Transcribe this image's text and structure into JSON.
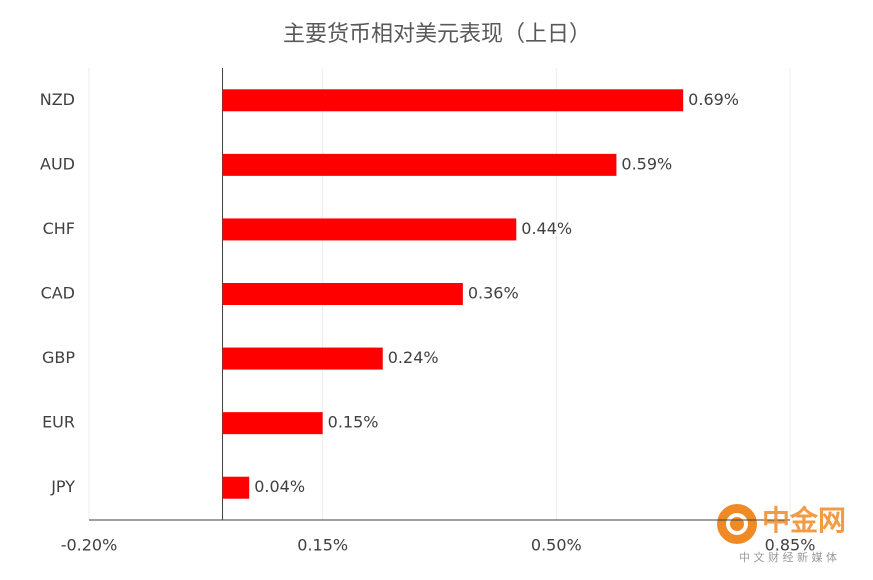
{
  "chart_data": {
    "type": "hbar",
    "title": "主要货币相对美元表现（上日）",
    "categories": [
      "NZD",
      "AUD",
      "CHF",
      "CAD",
      "GBP",
      "EUR",
      "JPY"
    ],
    "values": [
      0.69,
      0.59,
      0.44,
      0.36,
      0.24,
      0.15,
      0.04
    ],
    "value_labels": [
      "0.69%",
      "0.59%",
      "0.44%",
      "0.36%",
      "0.24%",
      "0.15%",
      "0.04%"
    ],
    "color": "#ff0000",
    "xlim": [
      -0.2,
      0.85
    ],
    "xticks": [
      {
        "value": -0.2,
        "label": "-0.20%"
      },
      {
        "value": 0.15,
        "label": "0.15%"
      },
      {
        "value": 0.5,
        "label": "0.50%"
      },
      {
        "value": 0.85,
        "label": "0.85%"
      }
    ],
    "grid": true,
    "watermark": "中金网",
    "watermark_sub": "中 文 财 经 新 媒 体"
  }
}
